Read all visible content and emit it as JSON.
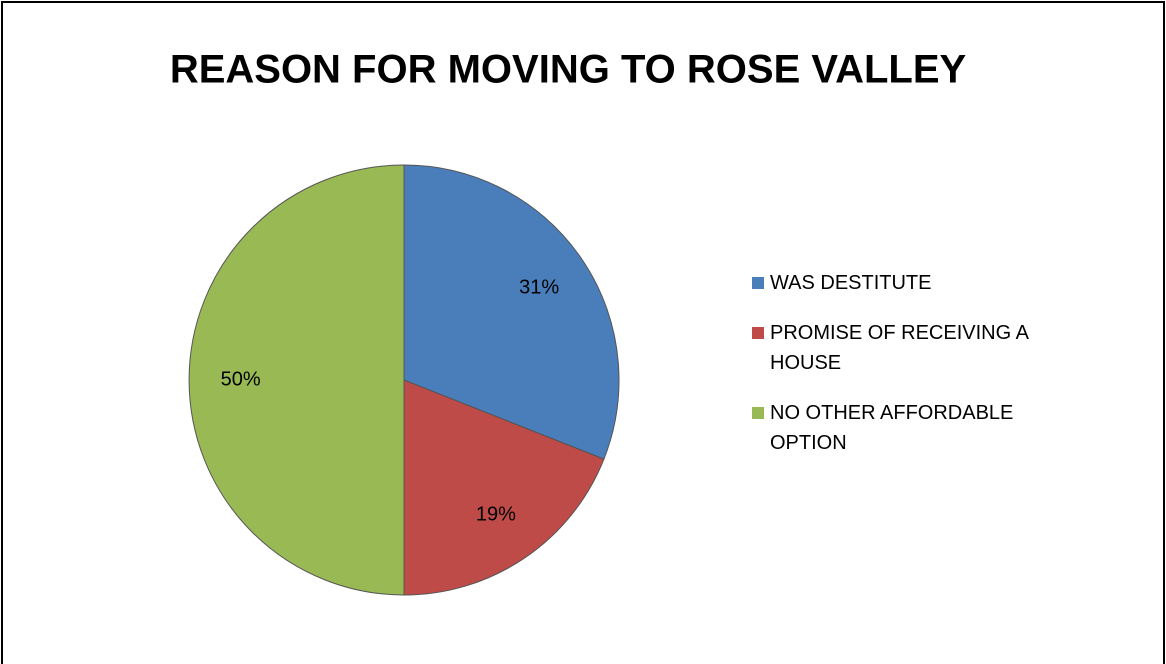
{
  "chart_data": {
    "type": "pie",
    "title": "REASON FOR MOVING TO ROSE VALLEY",
    "categories": [
      "WAS DESTITUTE",
      "PROMISE OF RECEIVING A HOUSE",
      "NO OTHER AFFORDABLE OPTION"
    ],
    "values": [
      31,
      19,
      50
    ],
    "value_labels": [
      "31%",
      "19%",
      "50%"
    ],
    "colors": [
      "#4a7ebb",
      "#be4b48",
      "#98b954"
    ],
    "legend": "right"
  }
}
